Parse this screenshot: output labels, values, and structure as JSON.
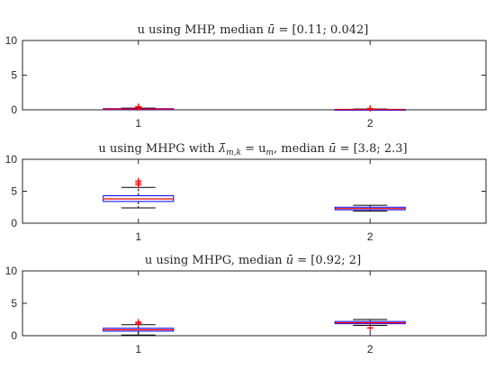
{
  "colors": {
    "box": "#0000ff",
    "median": "#ff0000",
    "whisker": "#000000",
    "outlier": "#ff0000",
    "axis": "#262626"
  },
  "chart_data": [
    {
      "type": "box",
      "title_main": "u using MHP, median ",
      "title_sym": "ū",
      "title_tail": " = [0.11; 0.042]",
      "categories": [
        "1",
        "2"
      ],
      "ylim": [
        0,
        10
      ],
      "yticks": [
        0,
        5,
        10
      ],
      "boxes": [
        {
          "median": 0.11,
          "q1": 0.05,
          "q3": 0.17,
          "whisker_low": 0.0,
          "whisker_high": 0.25,
          "outliers": [
            0.35,
            0.45
          ]
        },
        {
          "median": 0.042,
          "q1": 0.02,
          "q3": 0.07,
          "whisker_low": 0.0,
          "whisker_high": 0.12,
          "outliers": [
            0.2
          ]
        }
      ]
    },
    {
      "type": "box",
      "title_main": "u using MHPG with ",
      "title_sym": "λ̄",
      "title_sub": "m,k",
      "title_mid": " = u",
      "title_sub2": "m",
      "title_tail2": ", median ",
      "title_sym2": "ū",
      "title_tail3": " = [3.8; 2.3]",
      "categories": [
        "1",
        "2"
      ],
      "ylim": [
        0,
        10
      ],
      "yticks": [
        0,
        5,
        10
      ],
      "boxes": [
        {
          "median": 3.8,
          "q1": 3.4,
          "q3": 4.3,
          "whisker_low": 2.4,
          "whisker_high": 5.6,
          "outliers": [
            6.0,
            6.3,
            6.6
          ]
        },
        {
          "median": 2.3,
          "q1": 2.1,
          "q3": 2.5,
          "whisker_low": 1.9,
          "whisker_high": 2.8,
          "outliers": []
        }
      ]
    },
    {
      "type": "box",
      "title_main": "u using MHPG, median ",
      "title_sym": "ū",
      "title_tail": " = [0.92; 2]",
      "categories": [
        "1",
        "2"
      ],
      "ylim": [
        0,
        10
      ],
      "yticks": [
        0,
        5,
        10
      ],
      "boxes": [
        {
          "median": 0.92,
          "q1": 0.7,
          "q3": 1.15,
          "whisker_low": 0.1,
          "whisker_high": 1.7,
          "outliers": [
            1.9,
            2.1
          ]
        },
        {
          "median": 2.0,
          "q1": 1.85,
          "q3": 2.2,
          "whisker_low": 1.6,
          "whisker_high": 2.5,
          "outliers": [
            1.2
          ]
        }
      ]
    }
  ]
}
